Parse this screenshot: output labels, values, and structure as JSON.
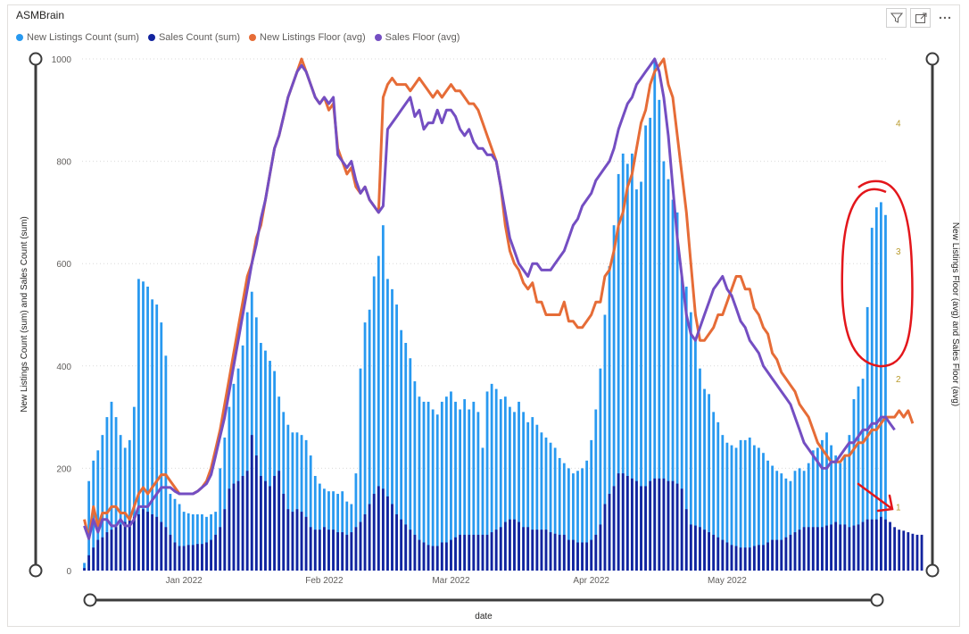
{
  "title": "ASMBrain",
  "toolbar": {
    "icons": [
      "filter-icon",
      "focus-mode-icon",
      "more-options-icon"
    ]
  },
  "legend": [
    {
      "label": "New Listings Count (sum)",
      "color": "#2899f0"
    },
    {
      "label": "Sales Count (sum)",
      "color": "#12239e"
    },
    {
      "label": "New Listings Floor (avg)",
      "color": "#e66c37"
    },
    {
      "label": "Sales Floor (avg)",
      "color": "#744ec2"
    }
  ],
  "chart_data": {
    "type": "combo",
    "xlabel": "date",
    "ylabel_left": "New Listings Count (sum) and Sales Count (sum)",
    "ylabel_right": "New Listings Floor (avg) and Sales Floor (avg)",
    "x_ticks": [
      "Jan 2022",
      "Feb 2022",
      "Mar 2022",
      "Apr 2022",
      "May 2022"
    ],
    "ylim_left": [
      0,
      1000
    ],
    "yticks_left": [
      "0",
      "200",
      "400",
      "600",
      "800",
      "1000"
    ],
    "ylim_right": [
      0.5,
      4.5
    ],
    "yticks_right": [
      "1",
      "2",
      "3",
      "4"
    ],
    "start_date": "2021-12-10",
    "series": [
      {
        "name": "New Listings Count (sum)",
        "type": "bar",
        "color": "#2899f0",
        "values": [
          15,
          175,
          215,
          235,
          265,
          300,
          330,
          300,
          265,
          240,
          255,
          320,
          570,
          565,
          555,
          530,
          520,
          485,
          420,
          150,
          140,
          130,
          115,
          112,
          110,
          110,
          110,
          105,
          110,
          115,
          200,
          260,
          320,
          365,
          395,
          440,
          505,
          545,
          495,
          445,
          430,
          410,
          390,
          340,
          310,
          285,
          270,
          270,
          265,
          255,
          225,
          185,
          170,
          160,
          155,
          155,
          150,
          155,
          135,
          130,
          190,
          395,
          485,
          510,
          575,
          615,
          675,
          570,
          550,
          520,
          470,
          445,
          415,
          370,
          340,
          330,
          330,
          315,
          305,
          330,
          340,
          350,
          330,
          315,
          335,
          315,
          330,
          310,
          240,
          350,
          365,
          355,
          335,
          340,
          320,
          310,
          330,
          310,
          290,
          300,
          285,
          270,
          260,
          250,
          240,
          220,
          210,
          200,
          190,
          195,
          200,
          215,
          255,
          315,
          395,
          500,
          595,
          675,
          775,
          815,
          795,
          815,
          745,
          760,
          870,
          885,
          995,
          920,
          800,
          765,
          725,
          700,
          575,
          555,
          505,
          450,
          395,
          355,
          345,
          310,
          290,
          265,
          250,
          245,
          240,
          255,
          255,
          260,
          245,
          240,
          230,
          215,
          205,
          195,
          190,
          180,
          175,
          195,
          200,
          195,
          210,
          235,
          240,
          255,
          270,
          245,
          225,
          210,
          225,
          265,
          335,
          360,
          375,
          515,
          670,
          710,
          720,
          695
        ]
      },
      {
        "name": "Sales Count (sum)",
        "type": "bar",
        "color": "#12239e",
        "values": [
          5,
          30,
          45,
          60,
          65,
          75,
          80,
          85,
          90,
          95,
          100,
          105,
          110,
          120,
          115,
          110,
          105,
          95,
          85,
          70,
          55,
          48,
          48,
          50,
          50,
          52,
          52,
          55,
          60,
          70,
          85,
          120,
          160,
          170,
          175,
          185,
          195,
          265,
          225,
          185,
          175,
          165,
          185,
          195,
          150,
          120,
          115,
          120,
          115,
          105,
          85,
          80,
          80,
          85,
          80,
          80,
          75,
          75,
          70,
          75,
          85,
          95,
          110,
          130,
          150,
          165,
          160,
          145,
          130,
          110,
          100,
          90,
          80,
          70,
          60,
          55,
          50,
          48,
          48,
          55,
          55,
          60,
          65,
          70,
          70,
          70,
          70,
          70,
          70,
          70,
          75,
          80,
          85,
          95,
          100,
          100,
          95,
          85,
          85,
          80,
          80,
          80,
          80,
          75,
          72,
          70,
          70,
          60,
          60,
          55,
          55,
          55,
          60,
          70,
          90,
          130,
          150,
          165,
          190,
          190,
          185,
          180,
          175,
          165,
          165,
          175,
          180,
          180,
          180,
          175,
          175,
          170,
          160,
          120,
          90,
          88,
          85,
          80,
          75,
          70,
          65,
          60,
          55,
          50,
          48,
          45,
          45,
          45,
          48,
          50,
          50,
          55,
          60,
          60,
          60,
          65,
          70,
          75,
          80,
          85,
          85,
          85,
          85,
          85,
          88,
          90,
          95,
          90,
          90,
          85,
          88,
          90,
          95,
          100,
          100,
          100,
          105,
          100,
          95,
          85,
          80,
          78,
          75,
          72,
          70,
          70
        ]
      },
      {
        "name": "New Listings Floor (avg)",
        "type": "line",
        "color": "#e66c37",
        "values": [
          0.9,
          0.75,
          1.0,
          0.85,
          0.95,
          0.95,
          1.0,
          1.0,
          0.95,
          0.95,
          0.9,
          1.0,
          1.1,
          1.15,
          1.1,
          1.15,
          1.2,
          1.25,
          1.25,
          1.2,
          1.15,
          1.1,
          1.1,
          1.1,
          1.1,
          1.12,
          1.15,
          1.2,
          1.3,
          1.45,
          1.6,
          1.8,
          2.0,
          2.2,
          2.4,
          2.6,
          2.8,
          2.9,
          3.1,
          3.2,
          3.4,
          3.6,
          3.8,
          3.9,
          4.05,
          4.2,
          4.3,
          4.4,
          4.5,
          4.4,
          4.3,
          4.2,
          4.15,
          4.2,
          4.1,
          4.15,
          3.8,
          3.7,
          3.6,
          3.65,
          3.5,
          3.45,
          3.5,
          3.4,
          3.35,
          3.3,
          4.2,
          4.3,
          4.35,
          4.3,
          4.3,
          4.3,
          4.25,
          4.3,
          4.35,
          4.3,
          4.25,
          4.2,
          4.25,
          4.2,
          4.25,
          4.3,
          4.25,
          4.25,
          4.2,
          4.15,
          4.15,
          4.1,
          4.0,
          3.9,
          3.8,
          3.7,
          3.5,
          3.2,
          3.0,
          2.9,
          2.85,
          2.75,
          2.7,
          2.75,
          2.6,
          2.6,
          2.5,
          2.5,
          2.5,
          2.5,
          2.6,
          2.45,
          2.45,
          2.4,
          2.4,
          2.45,
          2.5,
          2.6,
          2.6,
          2.8,
          2.85,
          3.0,
          3.2,
          3.3,
          3.5,
          3.6,
          3.8,
          4.0,
          4.1,
          4.3,
          4.4,
          4.45,
          4.5,
          4.3,
          4.2,
          3.9,
          3.6,
          3.3,
          2.9,
          2.5,
          2.3,
          2.3,
          2.35,
          2.4,
          2.5,
          2.5,
          2.6,
          2.7,
          2.8,
          2.8,
          2.7,
          2.7,
          2.55,
          2.5,
          2.4,
          2.35,
          2.2,
          2.15,
          2.05,
          2.0,
          1.95,
          1.9,
          1.8,
          1.75,
          1.7,
          1.6,
          1.5,
          1.45,
          1.4,
          1.35,
          1.35,
          1.35,
          1.4,
          1.4,
          1.45,
          1.5,
          1.5,
          1.55,
          1.6,
          1.6,
          1.65,
          1.7,
          1.7,
          1.7,
          1.75,
          1.7,
          1.75,
          1.65
        ]
      },
      {
        "name": "Sales Floor (avg)",
        "type": "line",
        "color": "#744ec2",
        "values": [
          0.85,
          0.75,
          0.9,
          0.8,
          0.9,
          0.9,
          0.85,
          0.85,
          0.9,
          0.85,
          0.85,
          0.9,
          1.0,
          1.0,
          1.0,
          1.05,
          1.1,
          1.15,
          1.15,
          1.15,
          1.12,
          1.1,
          1.1,
          1.1,
          1.1,
          1.12,
          1.15,
          1.18,
          1.25,
          1.4,
          1.55,
          1.7,
          1.9,
          2.1,
          2.3,
          2.5,
          2.7,
          2.9,
          3.05,
          3.25,
          3.4,
          3.6,
          3.8,
          3.9,
          4.05,
          4.2,
          4.3,
          4.4,
          4.45,
          4.4,
          4.3,
          4.2,
          4.15,
          4.2,
          4.15,
          4.2,
          3.75,
          3.7,
          3.65,
          3.7,
          3.55,
          3.45,
          3.5,
          3.4,
          3.35,
          3.3,
          3.35,
          3.95,
          4.0,
          4.05,
          4.1,
          4.15,
          4.2,
          4.05,
          4.1,
          3.95,
          4.0,
          4.0,
          4.1,
          4.0,
          4.1,
          4.1,
          4.05,
          3.95,
          3.9,
          3.95,
          3.85,
          3.8,
          3.8,
          3.75,
          3.75,
          3.7,
          3.5,
          3.3,
          3.1,
          3.0,
          2.9,
          2.85,
          2.8,
          2.9,
          2.9,
          2.85,
          2.85,
          2.85,
          2.9,
          2.95,
          3.0,
          3.1,
          3.2,
          3.25,
          3.35,
          3.4,
          3.45,
          3.55,
          3.6,
          3.65,
          3.7,
          3.8,
          3.95,
          4.05,
          4.15,
          4.2,
          4.3,
          4.35,
          4.4,
          4.45,
          4.5,
          4.4,
          4.2,
          3.9,
          3.5,
          3.1,
          2.8,
          2.5,
          2.35,
          2.3,
          2.4,
          2.5,
          2.6,
          2.7,
          2.75,
          2.8,
          2.7,
          2.65,
          2.55,
          2.45,
          2.4,
          2.3,
          2.25,
          2.2,
          2.1,
          2.05,
          2.0,
          1.95,
          1.9,
          1.85,
          1.8,
          1.7,
          1.6,
          1.5,
          1.45,
          1.4,
          1.35,
          1.3,
          1.3,
          1.35,
          1.35,
          1.4,
          1.45,
          1.5,
          1.5,
          1.55,
          1.6,
          1.6,
          1.65,
          1.65,
          1.7,
          1.7,
          1.65,
          1.6
        ]
      }
    ],
    "annotations": [
      "red-circle-around-may-peak",
      "red-arrow-pointing-down-right"
    ]
  }
}
